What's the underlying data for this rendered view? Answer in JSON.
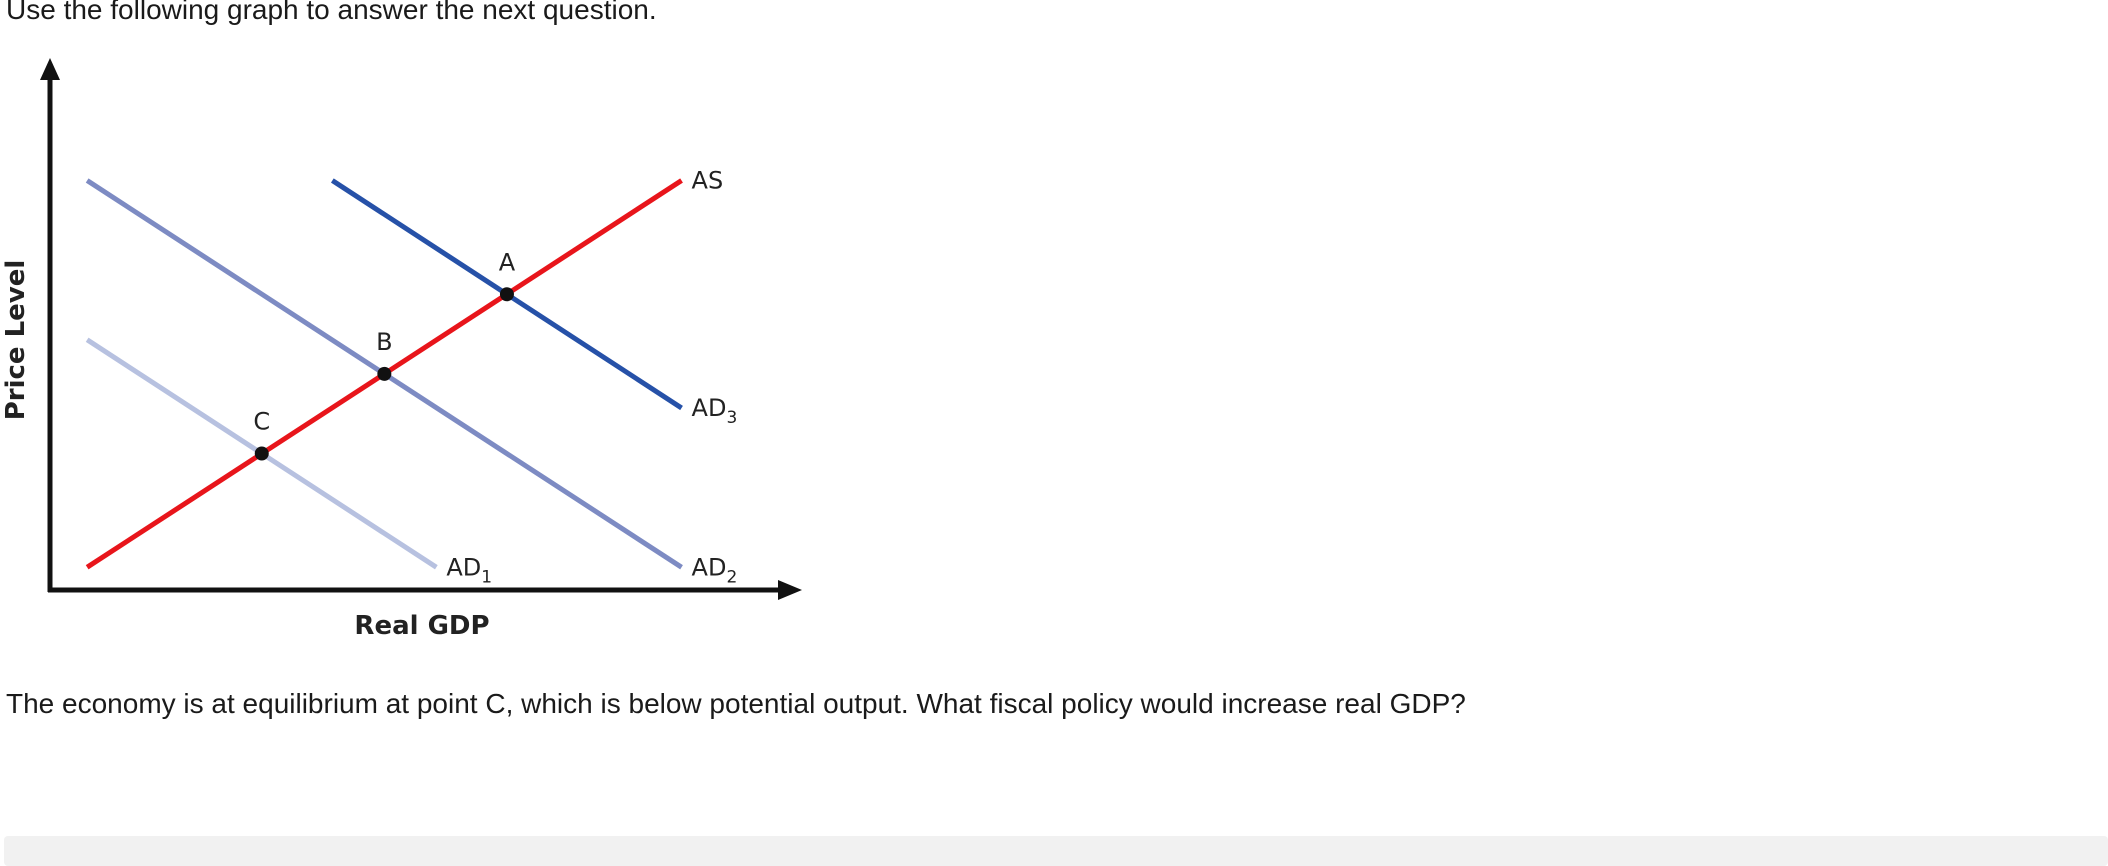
{
  "intro": "Use the following graph to answer the next question.",
  "question": "The economy is at equilibrium at point C, which is below potential output. What fiscal policy would increase real GDP?",
  "chart_data": {
    "type": "line",
    "xlabel": "Real GDP",
    "ylabel": "Price Level",
    "xlim": [
      0,
      100
    ],
    "ylim": [
      0,
      100
    ],
    "series": [
      {
        "key": "AS",
        "name": "AS",
        "sub": "",
        "color": "#e8151b",
        "x": [
          5,
          85
        ],
        "y": [
          5,
          90
        ]
      },
      {
        "key": "AD1",
        "name": "AD",
        "sub": "1",
        "color": "#b7c1e0",
        "x": [
          5,
          52
        ],
        "y": [
          55,
          5
        ]
      },
      {
        "key": "AD2",
        "name": "AD",
        "sub": "2",
        "color": "#7d8bc3",
        "x": [
          5,
          85
        ],
        "y": [
          90,
          5
        ]
      },
      {
        "key": "AD3",
        "name": "AD",
        "sub": "3",
        "color": "#2651a8",
        "x": [
          38,
          85
        ],
        "y": [
          90,
          40
        ]
      }
    ],
    "points": [
      {
        "label": "A",
        "x": 61.5,
        "y": 65
      },
      {
        "label": "B",
        "x": 45,
        "y": 47.5
      },
      {
        "label": "C",
        "x": 28.5,
        "y": 30
      }
    ]
  }
}
